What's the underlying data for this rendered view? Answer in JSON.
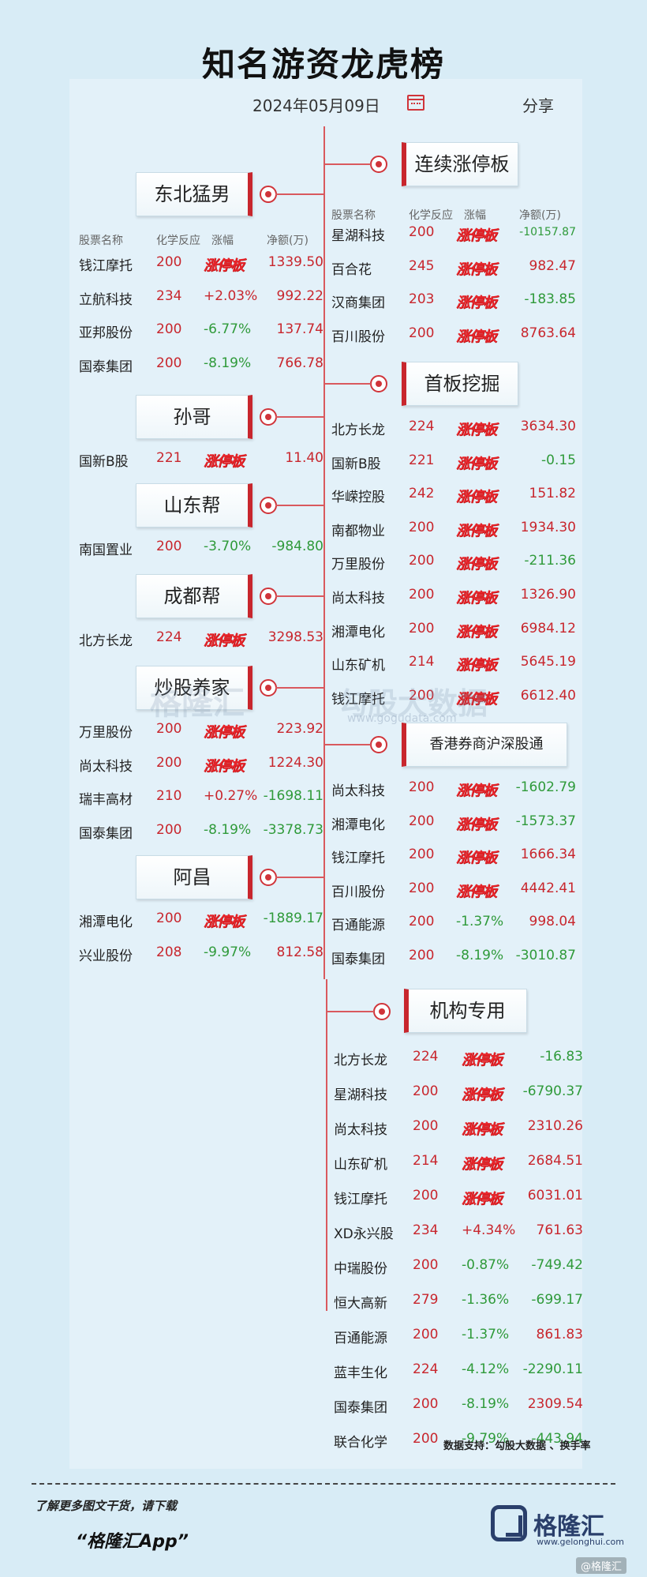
{
  "title": "知名游资龙虎榜",
  "date": "2024年05月09日",
  "share": "分享",
  "headers": {
    "name": "股票名称",
    "reaction": "化学反应",
    "change": "涨幅",
    "net": "净额(万)"
  },
  "left_groups": [
    {
      "label": "东北猛男",
      "rows": [
        {
          "name": "钱江摩托",
          "code": "200",
          "change": "涨停板",
          "net": "1339.50",
          "dir": "up"
        },
        {
          "name": "立航科技",
          "code": "234",
          "change": "+2.03%",
          "net": "992.22",
          "dir": "up"
        },
        {
          "name": "亚邦股份",
          "code": "200",
          "change": "-6.77%",
          "net": "137.74",
          "dir": "up"
        },
        {
          "name": "国泰集团",
          "code": "200",
          "change": "-8.19%",
          "net": "766.78",
          "dir": "up"
        }
      ]
    },
    {
      "label": "孙哥",
      "rows": [
        {
          "name": "国新B股",
          "code": "221",
          "change": "涨停板",
          "net": "11.40",
          "dir": "up"
        }
      ]
    },
    {
      "label": "山东帮",
      "rows": [
        {
          "name": "南国置业",
          "code": "200",
          "change": "-3.70%",
          "net": "-984.80",
          "dir": "down"
        }
      ]
    },
    {
      "label": "成都帮",
      "rows": [
        {
          "name": "北方长龙",
          "code": "224",
          "change": "涨停板",
          "net": "3298.53",
          "dir": "up"
        }
      ]
    },
    {
      "label": "炒股养家",
      "rows": [
        {
          "name": "万里股份",
          "code": "200",
          "change": "涨停板",
          "net": "223.92",
          "dir": "up"
        },
        {
          "name": "尚太科技",
          "code": "200",
          "change": "涨停板",
          "net": "1224.30",
          "dir": "up"
        },
        {
          "name": "瑞丰高材",
          "code": "210",
          "change": "+0.27%",
          "net": "-1698.11",
          "dir": "down"
        },
        {
          "name": "国泰集团",
          "code": "200",
          "change": "-8.19%",
          "net": "-3378.73",
          "dir": "down"
        }
      ]
    },
    {
      "label": "阿昌",
      "rows": [
        {
          "name": "湘潭电化",
          "code": "200",
          "change": "涨停板",
          "net": "-1889.17",
          "dir": "down"
        },
        {
          "name": "兴业股份",
          "code": "208",
          "change": "-9.97%",
          "net": "812.58",
          "dir": "up"
        }
      ]
    }
  ],
  "right_groups": [
    {
      "label": "连续涨停板",
      "rows": [
        {
          "name": "星湖科技",
          "code": "200",
          "change": "涨停板",
          "net": "-10157.87",
          "dir": "down"
        },
        {
          "name": "百合花",
          "code": "245",
          "change": "涨停板",
          "net": "982.47",
          "dir": "up"
        },
        {
          "name": "汉商集团",
          "code": "203",
          "change": "涨停板",
          "net": "-183.85",
          "dir": "down"
        },
        {
          "name": "百川股份",
          "code": "200",
          "change": "涨停板",
          "net": "8763.64",
          "dir": "up"
        }
      ]
    },
    {
      "label": "首板挖掘",
      "rows": [
        {
          "name": "北方长龙",
          "code": "224",
          "change": "涨停板",
          "net": "3634.30",
          "dir": "up"
        },
        {
          "name": "国新B股",
          "code": "221",
          "change": "涨停板",
          "net": "-0.15",
          "dir": "down"
        },
        {
          "name": "华嵘控股",
          "code": "242",
          "change": "涨停板",
          "net": "151.82",
          "dir": "up"
        },
        {
          "name": "南都物业",
          "code": "200",
          "change": "涨停板",
          "net": "1934.30",
          "dir": "up"
        },
        {
          "name": "万里股份",
          "code": "200",
          "change": "涨停板",
          "net": "-211.36",
          "dir": "down"
        },
        {
          "name": "尚太科技",
          "code": "200",
          "change": "涨停板",
          "net": "1326.90",
          "dir": "up"
        },
        {
          "name": "湘潭电化",
          "code": "200",
          "change": "涨停板",
          "net": "6984.12",
          "dir": "up"
        },
        {
          "name": "山东矿机",
          "code": "214",
          "change": "涨停板",
          "net": "5645.19",
          "dir": "up"
        },
        {
          "name": "钱江摩托",
          "code": "200",
          "change": "涨停板",
          "net": "6612.40",
          "dir": "up"
        }
      ]
    },
    {
      "label": "香港券商沪深股通",
      "rows": [
        {
          "name": "尚太科技",
          "code": "200",
          "change": "涨停板",
          "net": "-1602.79",
          "dir": "down"
        },
        {
          "name": "湘潭电化",
          "code": "200",
          "change": "涨停板",
          "net": "-1573.37",
          "dir": "down"
        },
        {
          "name": "钱江摩托",
          "code": "200",
          "change": "涨停板",
          "net": "1666.34",
          "dir": "up"
        },
        {
          "name": "百川股份",
          "code": "200",
          "change": "涨停板",
          "net": "4442.41",
          "dir": "up"
        },
        {
          "name": "百通能源",
          "code": "200",
          "change": "-1.37%",
          "net": "998.04",
          "dir": "up"
        },
        {
          "name": "国泰集团",
          "code": "200",
          "change": "-8.19%",
          "net": "-3010.87",
          "dir": "down"
        }
      ]
    }
  ],
  "institution": {
    "label": "机构专用",
    "rows": [
      {
        "name": "北方长龙",
        "code": "224",
        "change": "涨停板",
        "net": "-16.83",
        "dir": "down"
      },
      {
        "name": "星湖科技",
        "code": "200",
        "change": "涨停板",
        "net": "-6790.37",
        "dir": "down"
      },
      {
        "name": "尚太科技",
        "code": "200",
        "change": "涨停板",
        "net": "2310.26",
        "dir": "up"
      },
      {
        "name": "山东矿机",
        "code": "214",
        "change": "涨停板",
        "net": "2684.51",
        "dir": "up"
      },
      {
        "name": "钱江摩托",
        "code": "200",
        "change": "涨停板",
        "net": "6031.01",
        "dir": "up"
      },
      {
        "name": "XD永兴股",
        "code": "234",
        "change": "+4.34%",
        "net": "761.63",
        "dir": "up"
      },
      {
        "name": "中瑞股份",
        "code": "200",
        "change": "-0.87%",
        "net": "-749.42",
        "dir": "down"
      },
      {
        "name": "恒大高新",
        "code": "279",
        "change": "-1.36%",
        "net": "-699.17",
        "dir": "down"
      },
      {
        "name": "百通能源",
        "code": "200",
        "change": "-1.37%",
        "net": "861.83",
        "dir": "up"
      },
      {
        "name": "蓝丰生化",
        "code": "224",
        "change": "-4.12%",
        "net": "-2290.11",
        "dir": "down"
      },
      {
        "name": "国泰集团",
        "code": "200",
        "change": "-8.19%",
        "net": "2309.54",
        "dir": "up"
      },
      {
        "name": "联合化学",
        "code": "200",
        "change": "-9.79%",
        "net": "-443.94",
        "dir": "down"
      }
    ]
  },
  "watermark": {
    "left": "格隆汇",
    "right": "勾股大数据",
    "url": "www.gogudata.com"
  },
  "support": "数据支持：勾股大数据 、换手率",
  "footer": {
    "line1": "了解更多图文干货，请下载",
    "line2": "“格隆汇App”",
    "logo_text": "格隆汇",
    "logo_url": "www.gelonghui.com",
    "corner": "@格隆汇"
  },
  "colors": {
    "accent": "#c8262d",
    "up": "#c8262d",
    "down": "#2f9a3a",
    "background": "#d8ecf6"
  }
}
